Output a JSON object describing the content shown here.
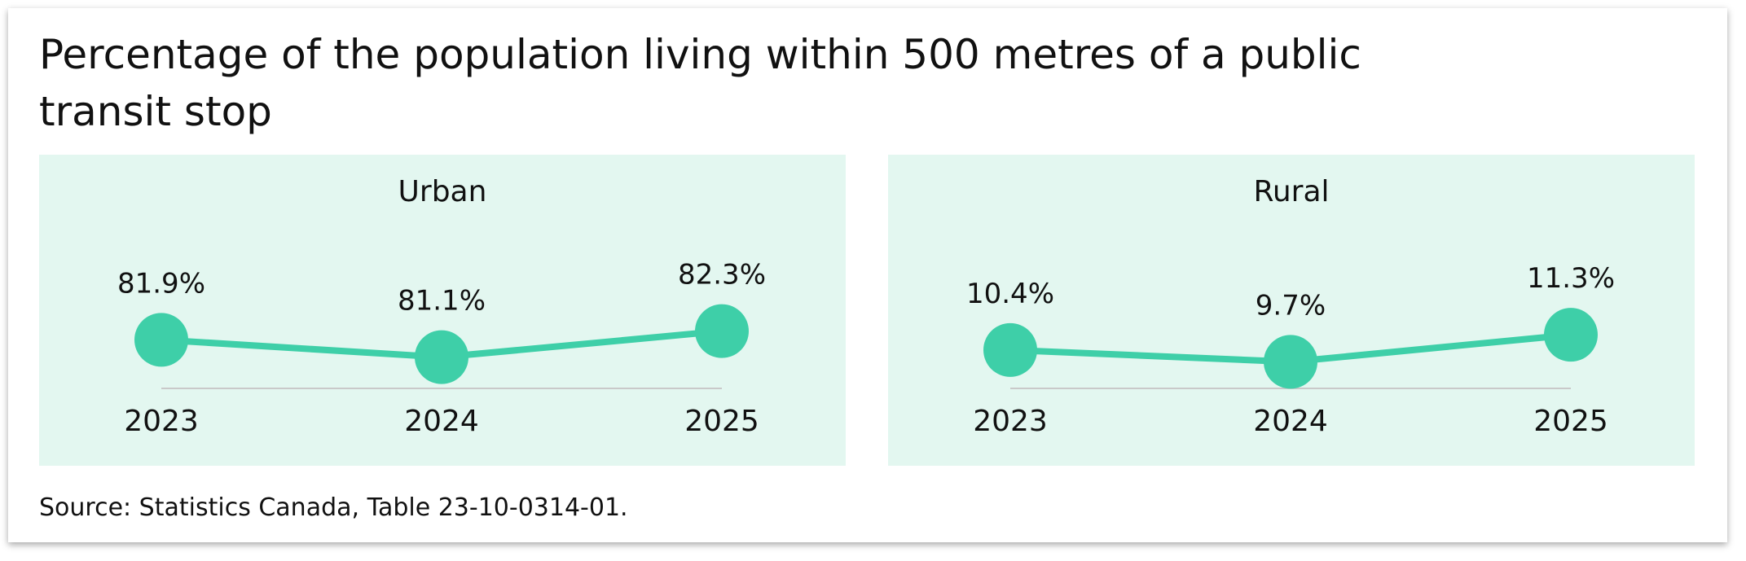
{
  "title": "Percentage of the population living within 500 metres of a public transit stop",
  "source": "Source: Statistics Canada, Table 23-10-0314-01.",
  "colors": {
    "accent": "#3ecfa8",
    "panel_background": "#e3f7f0",
    "baseline": "#c9c9c9",
    "text": "#111111"
  },
  "chart_data": [
    {
      "type": "line",
      "title": "Urban",
      "x": [
        "2023",
        "2024",
        "2025"
      ],
      "values": [
        81.9,
        81.1,
        82.3
      ],
      "labels": [
        "81.9%",
        "81.1%",
        "82.3%"
      ],
      "ylim": [
        80.3,
        83.3
      ]
    },
    {
      "type": "line",
      "title": "Rural",
      "x": [
        "2023",
        "2024",
        "2025"
      ],
      "values": [
        10.4,
        9.7,
        11.3
      ],
      "labels": [
        "10.4%",
        "9.7%",
        "11.3%"
      ],
      "ylim": [
        8.95,
        12.8
      ]
    }
  ]
}
